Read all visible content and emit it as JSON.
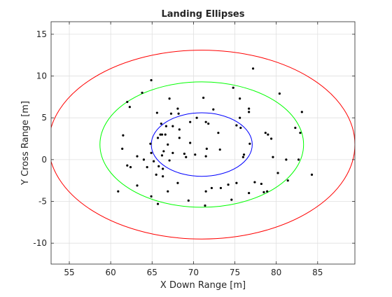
{
  "chart_data": {
    "type": "scatter",
    "title": "Landing Ellipses",
    "xlabel": "X Down Range [m]",
    "ylabel": "Y Cross Range [m]",
    "xlim": [
      52.8,
      89.5
    ],
    "ylim": [
      -12.5,
      16.5
    ],
    "xticks": [
      55,
      60,
      65,
      70,
      75,
      80,
      85
    ],
    "yticks": [
      -10,
      -5,
      0,
      5,
      10,
      15
    ],
    "grid": true,
    "colors": {
      "points": "#000000",
      "ellipse_inner": "#0000ff",
      "ellipse_middle": "#00ff00",
      "ellipse_outer": "#ff0000",
      "grid": "#e0e0e0",
      "axes": "#262626"
    },
    "ellipses": [
      {
        "center": [
          71.0,
          1.8
        ],
        "semi_x": 6.1,
        "semi_y": 3.8,
        "color": "#0000ff"
      },
      {
        "center": [
          71.0,
          1.8
        ],
        "semi_x": 12.3,
        "semi_y": 7.5,
        "color": "#00ff00"
      },
      {
        "center": [
          71.0,
          1.8
        ],
        "semi_x": 18.5,
        "semi_y": 11.3,
        "color": "#ff0000"
      }
    ],
    "points": [
      [
        64.9,
        9.5
      ],
      [
        77.2,
        10.9
      ],
      [
        74.8,
        8.6
      ],
      [
        63.8,
        8.0
      ],
      [
        80.4,
        7.9
      ],
      [
        67.1,
        7.3
      ],
      [
        71.2,
        7.4
      ],
      [
        75.6,
        7.3
      ],
      [
        62.0,
        6.9
      ],
      [
        62.3,
        6.3
      ],
      [
        68.1,
        6.1
      ],
      [
        72.4,
        6.0
      ],
      [
        76.7,
        6.1
      ],
      [
        76.7,
        5.7
      ],
      [
        83.1,
        5.7
      ],
      [
        65.6,
        5.6
      ],
      [
        67.3,
        5.5
      ],
      [
        68.2,
        5.5
      ],
      [
        70.4,
        5.0
      ],
      [
        75.6,
        5.0
      ],
      [
        69.6,
        4.5
      ],
      [
        71.5,
        4.5
      ],
      [
        71.8,
        4.3
      ],
      [
        66.1,
        4.3
      ],
      [
        66.7,
        4.0
      ],
      [
        67.5,
        4.0
      ],
      [
        68.3,
        3.6
      ],
      [
        75.2,
        4.1
      ],
      [
        75.7,
        3.8
      ],
      [
        82.3,
        3.8
      ],
      [
        61.5,
        2.9
      ],
      [
        66.2,
        3.0
      ],
      [
        66.6,
        3.0
      ],
      [
        66.0,
        3.0
      ],
      [
        73.0,
        3.2
      ],
      [
        78.7,
        3.2
      ],
      [
        79.0,
        3.0
      ],
      [
        82.9,
        3.2
      ],
      [
        65.7,
        2.6
      ],
      [
        68.3,
        2.6
      ],
      [
        79.4,
        2.5
      ],
      [
        64.8,
        1.9
      ],
      [
        66.9,
        1.8
      ],
      [
        69.6,
        2.0
      ],
      [
        76.8,
        1.9
      ],
      [
        61.4,
        1.3
      ],
      [
        66.4,
        1.0
      ],
      [
        67.5,
        0.8
      ],
      [
        71.6,
        1.3
      ],
      [
        73.2,
        1.2
      ],
      [
        64.9,
        0.8
      ],
      [
        66.2,
        0.5
      ],
      [
        68.9,
        0.7
      ],
      [
        70.2,
        0.6
      ],
      [
        76.1,
        0.6
      ],
      [
        63.2,
        0.4
      ],
      [
        69.1,
        0.3
      ],
      [
        71.5,
        0.4
      ],
      [
        76.0,
        0.3
      ],
      [
        79.6,
        0.3
      ],
      [
        81.2,
        0.0
      ],
      [
        82.7,
        0.0
      ],
      [
        64.0,
        0.0
      ],
      [
        65.2,
        -0.2
      ],
      [
        67.1,
        -0.1
      ],
      [
        62.0,
        -0.7
      ],
      [
        62.4,
        -0.9
      ],
      [
        64.4,
        -0.9
      ],
      [
        65.8,
        -0.8
      ],
      [
        66.3,
        -1.1
      ],
      [
        80.2,
        -1.6
      ],
      [
        84.3,
        -1.8
      ],
      [
        65.5,
        -1.8
      ],
      [
        66.3,
        -2.0
      ],
      [
        81.4,
        -2.5
      ],
      [
        77.4,
        -2.7
      ],
      [
        68.1,
        -2.8
      ],
      [
        75.2,
        -2.8
      ],
      [
        78.2,
        -2.9
      ],
      [
        63.2,
        -3.1
      ],
      [
        73.3,
        -3.4
      ],
      [
        74.2,
        -3.0
      ],
      [
        72.2,
        -3.4
      ],
      [
        78.5,
        -3.9
      ],
      [
        78.9,
        -3.8
      ],
      [
        60.9,
        -3.8
      ],
      [
        66.9,
        -3.8
      ],
      [
        71.5,
        -3.8
      ],
      [
        76.7,
        -4.0
      ],
      [
        64.9,
        -4.4
      ],
      [
        65.7,
        -5.3
      ],
      [
        74.6,
        -4.8
      ],
      [
        69.4,
        -4.9
      ],
      [
        71.4,
        -5.5
      ]
    ]
  }
}
